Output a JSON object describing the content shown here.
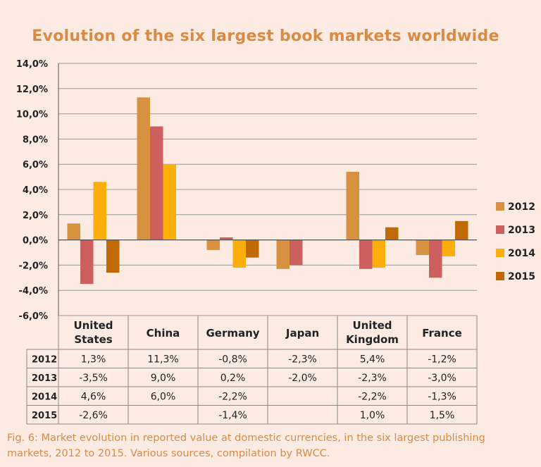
{
  "chart_data": {
    "type": "bar",
    "title": "Evolution of the six largest book markets worldwide",
    "categories": [
      "United States",
      "China",
      "Germany",
      "Japan",
      "United Kingdom",
      "France"
    ],
    "category_lines": [
      [
        "United",
        "States"
      ],
      [
        "China"
      ],
      [
        "Germany"
      ],
      [
        "Japan"
      ],
      [
        "United",
        "Kingdom"
      ],
      [
        "France"
      ]
    ],
    "ylim": [
      -6,
      14
    ],
    "yticks": [
      14,
      12,
      10,
      8,
      6,
      4,
      2,
      0,
      -2,
      -4,
      -6
    ],
    "ytick_labels": [
      "14,0%",
      "12,0%",
      "10,0%",
      "8,0%",
      "6,0%",
      "4,0%",
      "2,0%",
      "0,0%",
      "-2,0%",
      "-4,0%",
      "-6,0%"
    ],
    "series": [
      {
        "name": "2012",
        "color": "#d8913e",
        "values": [
          1.3,
          11.3,
          -0.8,
          -2.3,
          5.4,
          -1.2
        ],
        "labels": [
          "1,3%",
          "11,3%",
          "-0,8%",
          "-2,3%",
          "5,4%",
          "-1,2%"
        ]
      },
      {
        "name": "2013",
        "color": "#cd5f5f",
        "values": [
          -3.5,
          9.0,
          0.2,
          -2.0,
          -2.3,
          -3.0
        ],
        "labels": [
          "-3,5%",
          "9,0%",
          "0,2%",
          "-2,0%",
          "-2,3%",
          "-3,0%"
        ]
      },
      {
        "name": "2014",
        "color": "#fcae0c",
        "values": [
          4.6,
          6.0,
          -2.2,
          null,
          -2.2,
          -1.3
        ],
        "labels": [
          "4,6%",
          "6,0%",
          "-2,2%",
          "",
          "-2,2%",
          "-1,3%"
        ]
      },
      {
        "name": "2015",
        "color": "#bf6a06",
        "values": [
          -2.6,
          null,
          -1.4,
          null,
          1.0,
          1.5
        ],
        "labels": [
          "-2,6%",
          "",
          "-1,4%",
          "",
          "1,0%",
          "1,5%"
        ]
      }
    ],
    "legend": "right",
    "grid": true
  },
  "caption": "Fig. 6: Market evolution in reported value at domestic currencies, in the six largest publishing markets, 2012 to 2015. Various sources, compilation by RWCC."
}
